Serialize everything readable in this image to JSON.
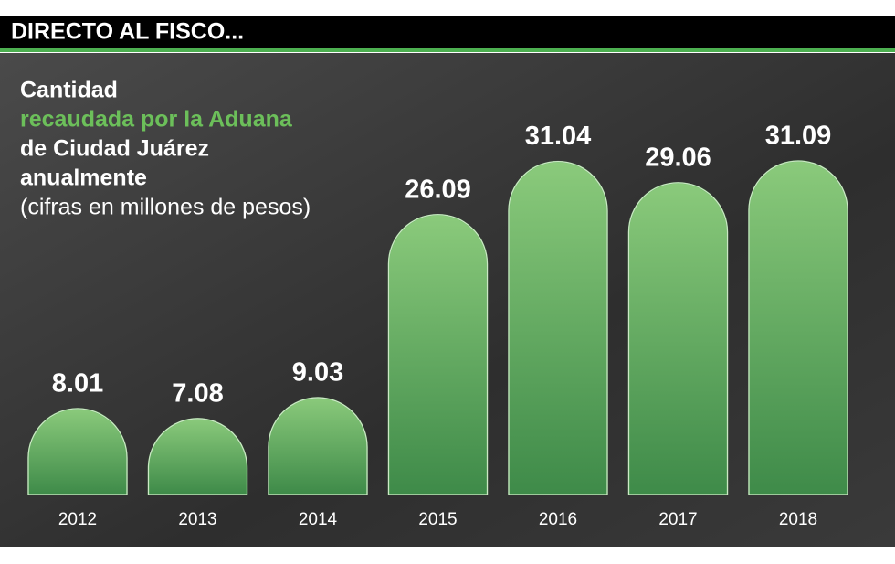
{
  "chart_data": {
    "type": "bar",
    "title": "DIRECTO AL FISCO...",
    "subtitle_lines": [
      "Cantidad",
      "recaudada por la Aduana",
      "de Ciudad Juárez",
      "anualmente",
      "(cifras en millones de pesos)"
    ],
    "categories": [
      "2012",
      "2013",
      "2014",
      "2015",
      "2016",
      "2017",
      "2018"
    ],
    "values": [
      8.01,
      7.08,
      9.03,
      26.09,
      31.04,
      29.06,
      31.09
    ],
    "color": "#5fae5f"
  }
}
